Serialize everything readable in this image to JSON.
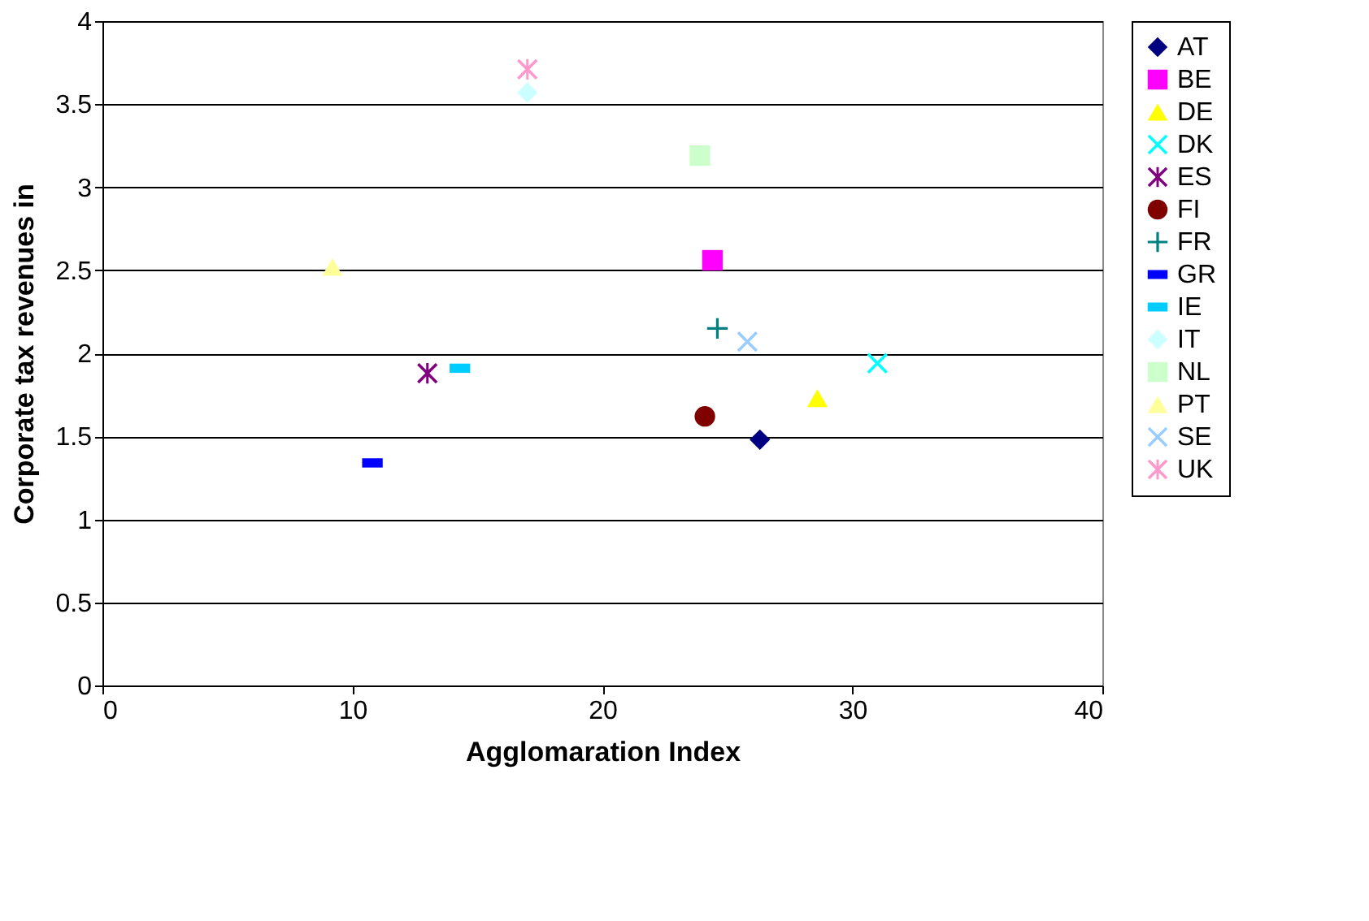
{
  "chart_data": {
    "type": "scatter",
    "xlabel": "Agglomaration Index",
    "ylabel": "Corporate tax revenues in",
    "xlim": [
      0,
      40
    ],
    "xticks": [
      0,
      10,
      20,
      30,
      40
    ],
    "ylim": [
      0,
      4
    ],
    "yticks": [
      0,
      0.5,
      1,
      1.5,
      2,
      2.5,
      3,
      3.5,
      4
    ],
    "grid": "y",
    "legend": "right",
    "series": [
      {
        "name": "AT",
        "color": "#000080",
        "marker": "diamond",
        "x": [
          26.3
        ],
        "values": [
          1.48
        ]
      },
      {
        "name": "BE",
        "color": "#ff00ff",
        "marker": "square",
        "x": [
          24.4
        ],
        "values": [
          2.56
        ]
      },
      {
        "name": "DE",
        "color": "#ffff00",
        "marker": "triangle",
        "x": [
          28.6
        ],
        "values": [
          1.73
        ]
      },
      {
        "name": "DK",
        "color": "#00ffff",
        "marker": "x",
        "x": [
          31.0
        ],
        "values": [
          1.94
        ]
      },
      {
        "name": "ES",
        "color": "#800080",
        "marker": "asterisk",
        "x": [
          13.0
        ],
        "values": [
          1.88
        ]
      },
      {
        "name": "FI",
        "color": "#800000",
        "marker": "circle",
        "x": [
          24.1
        ],
        "values": [
          1.62
        ]
      },
      {
        "name": "FR",
        "color": "#008080",
        "marker": "cross",
        "x": [
          24.6
        ],
        "values": [
          2.15
        ]
      },
      {
        "name": "GR",
        "color": "#0000ff",
        "x": [
          10.8
        ],
        "values": [
          1.34
        ]
      },
      {
        "name": "IE",
        "color": "#00ccff",
        "x": [
          14.3
        ],
        "values": [
          1.91
        ]
      },
      {
        "name": "IT",
        "color": "#ccffff",
        "marker": "diamond",
        "x": [
          17.0
        ],
        "values": [
          3.57
        ]
      },
      {
        "name": "NL",
        "color": "#ccffcc",
        "marker": "square",
        "x": [
          23.9
        ],
        "values": [
          3.19
        ]
      },
      {
        "name": "PT",
        "color": "#ffff99",
        "marker": "triangle",
        "x": [
          9.2
        ],
        "values": [
          2.52
        ]
      },
      {
        "name": "SE",
        "color": "#99ccff",
        "marker": "x",
        "x": [
          25.8
        ],
        "values": [
          2.07
        ]
      },
      {
        "name": "UK",
        "color": "#ff99cc",
        "marker": "asterisk",
        "x": [
          17.0
        ],
        "values": [
          3.71
        ]
      }
    ]
  }
}
